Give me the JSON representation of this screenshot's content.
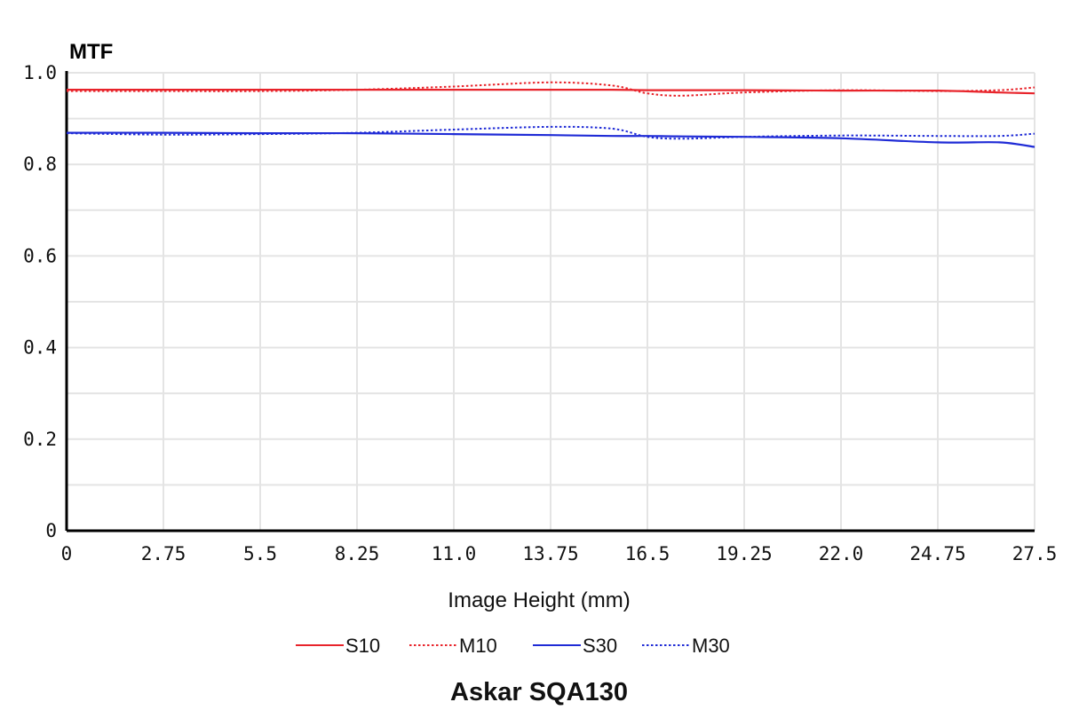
{
  "chart_data": {
    "type": "line",
    "title": "Askar SQA130",
    "ylabel": "MTF",
    "xlabel": "Image Height (mm)",
    "xlim": [
      0,
      27.5
    ],
    "ylim": [
      0,
      1.0
    ],
    "x_ticks": [
      "0",
      "2.75",
      "5.5",
      "8.25",
      "11.0",
      "13.75",
      "16.5",
      "19.25",
      "22.0",
      "24.75",
      "27.5"
    ],
    "y_ticks": [
      "0",
      "0.2",
      "0.4",
      "0.6",
      "0.8",
      "1.0"
    ],
    "grid": true,
    "legend_position": "bottom",
    "x": [
      0,
      2.75,
      5.5,
      8.25,
      11.0,
      13.75,
      15.5,
      16.5,
      17.5,
      19.25,
      22.0,
      24.75,
      26.5,
      27.5
    ],
    "series": [
      {
        "name": "S10",
        "color": "#e8242b",
        "style": "solid",
        "values": [
          0.963,
          0.963,
          0.963,
          0.963,
          0.963,
          0.963,
          0.963,
          0.962,
          0.962,
          0.962,
          0.961,
          0.961,
          0.957,
          0.955
        ]
      },
      {
        "name": "M10",
        "color": "#e8242b",
        "style": "dotted",
        "values": [
          0.96,
          0.96,
          0.96,
          0.963,
          0.97,
          0.979,
          0.972,
          0.955,
          0.95,
          0.957,
          0.962,
          0.96,
          0.962,
          0.968
        ]
      },
      {
        "name": "S30",
        "color": "#1f2bd6",
        "style": "solid",
        "values": [
          0.869,
          0.869,
          0.868,
          0.868,
          0.866,
          0.864,
          0.862,
          0.862,
          0.861,
          0.86,
          0.857,
          0.848,
          0.848,
          0.838
        ]
      },
      {
        "name": "M30",
        "color": "#1f2bd6",
        "style": "dotted",
        "values": [
          0.868,
          0.865,
          0.866,
          0.869,
          0.876,
          0.882,
          0.878,
          0.86,
          0.856,
          0.86,
          0.863,
          0.862,
          0.862,
          0.867
        ]
      }
    ]
  }
}
